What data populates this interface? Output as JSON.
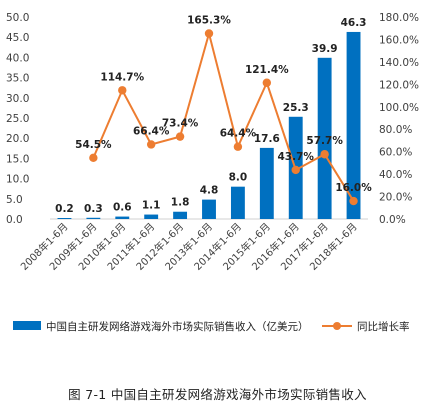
{
  "chart_data": {
    "type": "bar+line",
    "categories": [
      "2008年1-6月",
      "2009年1-6月",
      "2010年1-6月",
      "2011年1-6月",
      "2012年1-6月",
      "2013年1-6月",
      "2014年1-6月",
      "2015年1-6月",
      "2016年1-6月",
      "2017年1-6月",
      "2018年1-6月"
    ],
    "series": [
      {
        "name": "中国自主研发网络游戏海外市场实际销售收入（亿美元）",
        "type": "bar",
        "axis": "left",
        "color": "#0070C0",
        "values": [
          0.2,
          0.3,
          0.6,
          1.1,
          1.8,
          4.8,
          8.0,
          17.6,
          25.3,
          39.9,
          46.3
        ],
        "labels": [
          "0.2",
          "0.3",
          "0.6",
          "1.1",
          "1.8",
          "4.8",
          "8.0",
          "17.6",
          "25.3",
          "39.9",
          "46.3"
        ]
      },
      {
        "name": "同比增长率",
        "type": "line",
        "axis": "right",
        "color": "#ED7D31",
        "values": [
          null,
          54.5,
          114.7,
          66.4,
          73.4,
          165.3,
          64.4,
          121.4,
          43.7,
          57.7,
          16.0
        ],
        "labels": [
          "",
          "54.5%",
          "114.7%",
          "66.4%",
          "73.4%",
          "165.3%",
          "64.4%",
          "121.4%",
          "43.7%",
          "57.7%",
          "16.0%"
        ]
      }
    ],
    "y_left": {
      "lim": [
        0,
        50
      ],
      "ticks": [
        0,
        5,
        10,
        15,
        20,
        25,
        30,
        35,
        40,
        45,
        50
      ],
      "tick_labels": [
        "0.0",
        "5.0",
        "10.0",
        "15.0",
        "20.0",
        "25.0",
        "30.0",
        "35.0",
        "40.0",
        "45.0",
        "50.0"
      ]
    },
    "y_right": {
      "lim": [
        0,
        180
      ],
      "ticks": [
        0,
        20,
        40,
        60,
        80,
        100,
        120,
        140,
        160,
        180
      ],
      "tick_labels": [
        "0.0%",
        "20.0%",
        "40.0%",
        "60.0%",
        "80.0%",
        "100.0%",
        "120.0%",
        "140.0%",
        "160.0%",
        "180.0%"
      ]
    },
    "title": "",
    "xlabel": "",
    "ylabel": "",
    "grid": false,
    "legend_position": "bottom"
  },
  "caption": "图 7-1  中国自主研发网络游戏海外市场实际销售收入"
}
